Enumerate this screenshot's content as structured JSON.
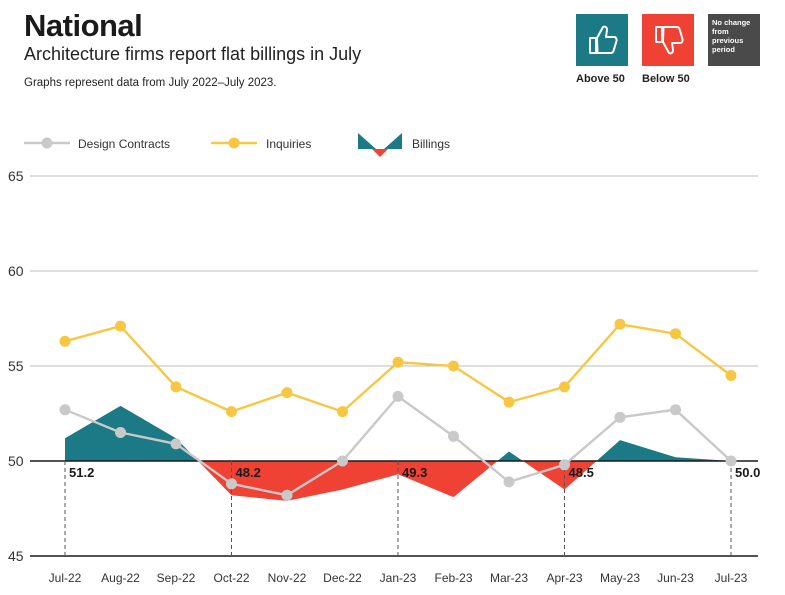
{
  "header": {
    "title": "National",
    "subtitle": "Architecture firms report flat billings in July",
    "note": "Graphs represent data from July 2022–July 2023."
  },
  "key": {
    "above": "Above 50",
    "below": "Below 50",
    "nochange_lines": [
      "No change",
      "from",
      "previous",
      "period"
    ]
  },
  "colors": {
    "above": "#1b7a86",
    "below": "#ef4134",
    "inquiries": "#f7c744",
    "design_contracts": "#c9c9c9",
    "nochange": "#4a4a4a"
  },
  "chart_data": {
    "type": "line",
    "categories": [
      "Jul-22",
      "Aug-22",
      "Sep-22",
      "Oct-22",
      "Nov-22",
      "Dec-22",
      "Jan-23",
      "Feb-23",
      "Mar-23",
      "Apr-23",
      "May-23",
      "Jun-23",
      "Jul-23"
    ],
    "series": [
      {
        "name": "Design Contracts",
        "values": [
          52.7,
          51.5,
          50.9,
          48.8,
          48.2,
          50.0,
          53.4,
          51.3,
          48.9,
          49.8,
          52.3,
          52.7,
          50.0
        ]
      },
      {
        "name": "Inquiries",
        "values": [
          56.3,
          57.1,
          53.9,
          52.6,
          53.6,
          52.6,
          55.2,
          55.0,
          53.1,
          53.9,
          57.2,
          56.7,
          54.5
        ]
      },
      {
        "name": "Billings",
        "values": [
          51.2,
          52.9,
          51.2,
          48.2,
          47.9,
          48.5,
          49.3,
          48.1,
          50.5,
          48.5,
          51.1,
          50.2,
          50.0
        ]
      }
    ],
    "legend": [
      "Design Contracts",
      "Inquiries",
      "Billings"
    ],
    "baseline": 50,
    "ylim": [
      45,
      65
    ],
    "yticks": [
      45,
      50,
      55,
      60,
      65
    ],
    "annotations": [
      {
        "index": 0,
        "label": "51.2"
      },
      {
        "index": 3,
        "label": "48.2"
      },
      {
        "index": 6,
        "label": "49.3"
      },
      {
        "index": 9,
        "label": "48.5"
      },
      {
        "index": 12,
        "label": "50.0"
      }
    ]
  }
}
